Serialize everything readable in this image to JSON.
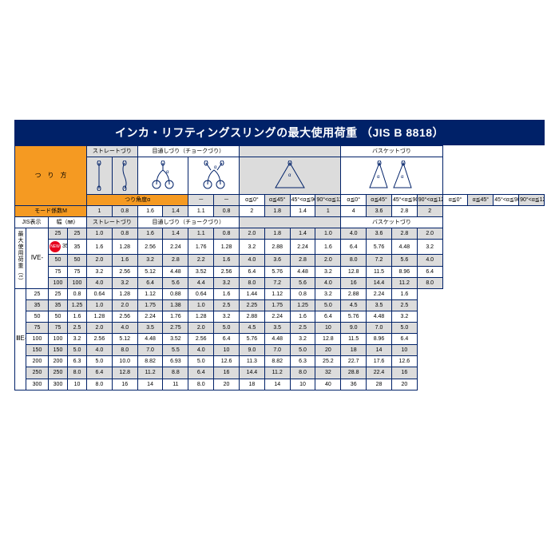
{
  "title": "インカ・リフティングスリングの最大使用荷重 （JIS B 8818）",
  "method_label": "つ　り　方",
  "angle_row_label": "つり角度α",
  "mode_row_label": "モード係数M",
  "section_headers": {
    "straight": "ストレートづり",
    "choker": "目通しづり（チョークづり）",
    "basket": "バスケットづり"
  },
  "angle_labels": [
    "－",
    "－",
    "α≦0°",
    "α≦45°",
    "45°<α≦90°",
    "90°<α≦120°",
    "α≦0°",
    "α≦45°",
    "45°<α≦90°",
    "90°<α≦120°",
    "α≦0°",
    "α≦45°",
    "45°<α≦90°",
    "90°<α≦120°"
  ],
  "mode_values": [
    "1",
    "0.8",
    "1.6",
    "1.4",
    "1.1",
    "0.8",
    "2",
    "1.8",
    "1.4",
    "1",
    "4",
    "3.6",
    "2.8",
    "2"
  ],
  "jis_label": "JIS表示",
  "width_label": "幅（㎜）",
  "sub_straight": "ストレートづり",
  "sub_choker": "目通しづり（チョークづり）",
  "sub_basket": "バスケットづり",
  "side_label": "最大使用荷重（t）",
  "grade_ive": "ⅣE-",
  "grade_iiie": "ⅢE-",
  "rows_top": [
    {
      "grey": true,
      "jis": "25",
      "w": "25",
      "s": "1.0",
      "v": [
        "1.0",
        "0.8",
        "1.6",
        "1.4",
        "1.1",
        "0.8",
        "2.0",
        "1.8",
        "1.4",
        "1.0",
        "4.0",
        "3.6",
        "2.8",
        "2.0"
      ]
    },
    {
      "grey": false,
      "new": true,
      "jis": "35",
      "w": "35",
      "s": "1.6",
      "v": [
        "1.6",
        "1.28",
        "2.56",
        "2.24",
        "1.76",
        "1.28",
        "3.2",
        "2.88",
        "2.24",
        "1.6",
        "6.4",
        "5.76",
        "4.48",
        "3.2"
      ]
    },
    {
      "grey": true,
      "jis": "50",
      "w": "50",
      "s": "2.0",
      "v": [
        "2.0",
        "1.6",
        "3.2",
        "2.8",
        "2.2",
        "1.6",
        "4.0",
        "3.6",
        "2.8",
        "2.0",
        "8.0",
        "7.2",
        "5.6",
        "4.0"
      ]
    },
    {
      "grey": false,
      "jis": "75",
      "w": "75",
      "s": "3.2",
      "v": [
        "3.2",
        "2.56",
        "5.12",
        "4.48",
        "3.52",
        "2.56",
        "6.4",
        "5.76",
        "4.48",
        "3.2",
        "12.8",
        "11.5",
        "8.96",
        "6.4"
      ]
    },
    {
      "grey": true,
      "jis": "100",
      "w": "100",
      "s": "4.0",
      "v": [
        "4.0",
        "3.2",
        "6.4",
        "5.6",
        "4.4",
        "3.2",
        "8.0",
        "7.2",
        "5.6",
        "4.0",
        "16",
        "14.4",
        "11.2",
        "8.0"
      ]
    }
  ],
  "rows_bottom": [
    {
      "grey": false,
      "jis": "25",
      "w": "25",
      "s": "0.8",
      "v": [
        "0.8",
        "0.64",
        "1.28",
        "1.12",
        "0.88",
        "0.64",
        "1.6",
        "1.44",
        "1.12",
        "0.8",
        "3.2",
        "2.88",
        "2.24",
        "1.6"
      ]
    },
    {
      "grey": true,
      "jis": "35",
      "w": "35",
      "s": "1.25",
      "v": [
        "1.25",
        "1.0",
        "2.0",
        "1.75",
        "1.38",
        "1.0",
        "2.5",
        "2.25",
        "1.75",
        "1.25",
        "5.0",
        "4.5",
        "3.5",
        "2.5"
      ]
    },
    {
      "grey": false,
      "jis": "50",
      "w": "50",
      "s": "1.6",
      "v": [
        "1.6",
        "1.28",
        "2.56",
        "2.24",
        "1.76",
        "1.28",
        "3.2",
        "2.88",
        "2.24",
        "1.6",
        "6.4",
        "5.76",
        "4.48",
        "3.2"
      ]
    },
    {
      "grey": true,
      "jis": "75",
      "w": "75",
      "s": "2.5",
      "v": [
        "2.5",
        "2.0",
        "4.0",
        "3.5",
        "2.75",
        "2.0",
        "5.0",
        "4.5",
        "3.5",
        "2.5",
        "10",
        "9.0",
        "7.0",
        "5.0"
      ]
    },
    {
      "grey": false,
      "jis": "100",
      "w": "100",
      "s": "3.2",
      "v": [
        "3.2",
        "2.56",
        "5.12",
        "4.48",
        "3.52",
        "2.56",
        "6.4",
        "5.76",
        "4.48",
        "3.2",
        "12.8",
        "11.5",
        "8.96",
        "6.4"
      ]
    },
    {
      "grey": true,
      "jis": "150",
      "w": "150",
      "s": "5.0",
      "v": [
        "5.0",
        "4.0",
        "8.0",
        "7.0",
        "5.5",
        "4.0",
        "10",
        "9.0",
        "7.0",
        "5.0",
        "20",
        "18",
        "14",
        "10"
      ]
    },
    {
      "grey": false,
      "jis": "200",
      "w": "200",
      "s": "6.3",
      "v": [
        "6.3",
        "5.0",
        "10.0",
        "8.82",
        "6.93",
        "5.0",
        "12.6",
        "11.3",
        "8.82",
        "6.3",
        "25.2",
        "22.7",
        "17.6",
        "12.6"
      ]
    },
    {
      "grey": true,
      "jis": "250",
      "w": "250",
      "s": "8.0",
      "v": [
        "8.0",
        "6.4",
        "12.8",
        "11.2",
        "8.8",
        "6.4",
        "16",
        "14.4",
        "11.2",
        "8.0",
        "32",
        "28.8",
        "22.4",
        "16"
      ]
    },
    {
      "grey": false,
      "jis": "300",
      "w": "300",
      "s": "10",
      "v": [
        "10",
        "8.0",
        "16",
        "14",
        "11",
        "8.0",
        "20",
        "18",
        "14",
        "10",
        "40",
        "36",
        "28",
        "20"
      ]
    }
  ]
}
